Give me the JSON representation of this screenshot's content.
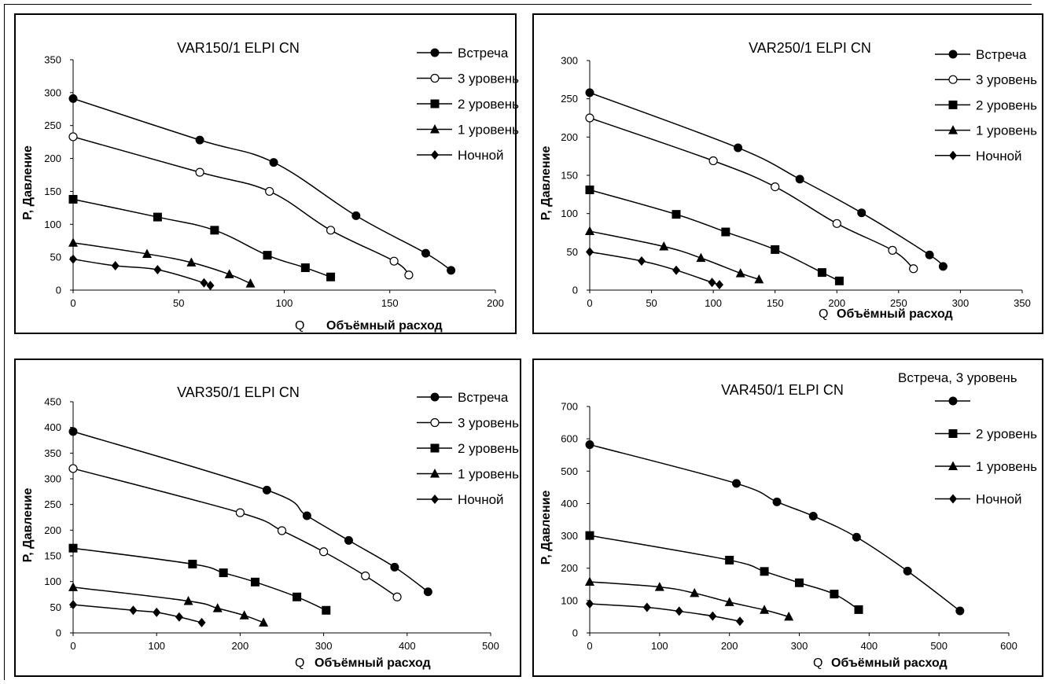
{
  "chart_data": [
    {
      "type": "line",
      "title": "VAR150/1 ELPI CN",
      "ylabel": "P, Давление",
      "xlabel_symbol": "Q",
      "xlabel": "Объёмный расход",
      "xlim": [
        0,
        200
      ],
      "ylim": [
        0,
        350
      ],
      "xticks": [
        0,
        50,
        100,
        150,
        200
      ],
      "yticks": [
        0,
        50,
        100,
        150,
        200,
        250,
        300,
        350
      ],
      "grid": false,
      "legend": "top-right",
      "series": [
        {
          "name": "Встреча",
          "marker": "circle",
          "points": [
            [
              0,
              291
            ],
            [
              60,
              228
            ],
            [
              95,
              194
            ],
            [
              134,
              113
            ],
            [
              167,
              56
            ],
            [
              179,
              30
            ]
          ]
        },
        {
          "name": "3 уровень",
          "marker": "open-circle",
          "points": [
            [
              0,
              233
            ],
            [
              60,
              179
            ],
            [
              93,
              150
            ],
            [
              122,
              91
            ],
            [
              152,
              44
            ],
            [
              159,
              23
            ]
          ]
        },
        {
          "name": "2 уровень",
          "marker": "square",
          "points": [
            [
              0,
              138
            ],
            [
              40,
              111
            ],
            [
              67,
              91
            ],
            [
              92,
              53
            ],
            [
              110,
              34
            ],
            [
              122,
              20
            ]
          ]
        },
        {
          "name": "1 уровень",
          "marker": "triangle",
          "points": [
            [
              0,
              72
            ],
            [
              35,
              55
            ],
            [
              56,
              42
            ],
            [
              74,
              24
            ],
            [
              84,
              10
            ]
          ]
        },
        {
          "name": "Ночной",
          "marker": "diamond",
          "points": [
            [
              0,
              47
            ],
            [
              20,
              37
            ],
            [
              40,
              31
            ],
            [
              62,
              11
            ],
            [
              65,
              7
            ]
          ]
        }
      ]
    },
    {
      "type": "line",
      "title": "VAR250/1 ELPI CN",
      "ylabel": "P, Давление",
      "xlabel_symbol": "Q",
      "xlabel": "Объёмный расход",
      "xlim": [
        0,
        350
      ],
      "ylim": [
        0,
        300
      ],
      "xticks": [
        0,
        50,
        100,
        150,
        200,
        250,
        300,
        350
      ],
      "yticks": [
        0,
        50,
        100,
        150,
        200,
        250,
        300
      ],
      "grid": false,
      "legend": "top-right",
      "series": [
        {
          "name": "Встреча",
          "marker": "circle",
          "points": [
            [
              0,
              258
            ],
            [
              120,
              186
            ],
            [
              170,
              145
            ],
            [
              220,
              101
            ],
            [
              275,
              46
            ],
            [
              286,
              31
            ]
          ]
        },
        {
          "name": "3 уровень",
          "marker": "open-circle",
          "points": [
            [
              0,
              225
            ],
            [
              100,
              169
            ],
            [
              150,
              135
            ],
            [
              200,
              87
            ],
            [
              245,
              52
            ],
            [
              262,
              28
            ]
          ]
        },
        {
          "name": "2 уровень",
          "marker": "square",
          "points": [
            [
              0,
              131
            ],
            [
              70,
              99
            ],
            [
              110,
              76
            ],
            [
              150,
              53
            ],
            [
              188,
              23
            ],
            [
              202,
              12
            ]
          ]
        },
        {
          "name": "1 уровень",
          "marker": "triangle",
          "points": [
            [
              0,
              77
            ],
            [
              60,
              57
            ],
            [
              90,
              42
            ],
            [
              122,
              22
            ],
            [
              137,
              14
            ]
          ]
        },
        {
          "name": "Ночной",
          "marker": "diamond",
          "points": [
            [
              0,
              50
            ],
            [
              42,
              38
            ],
            [
              70,
              26
            ],
            [
              99,
              10
            ],
            [
              105,
              7
            ]
          ]
        }
      ]
    },
    {
      "type": "line",
      "title": "VAR350/1 ELPI CN",
      "ylabel": "P, Давление",
      "xlabel_symbol": "Q",
      "xlabel": "Объёмный расход",
      "xlim": [
        0,
        500
      ],
      "ylim": [
        0,
        450
      ],
      "xticks": [
        0,
        100,
        200,
        300,
        400,
        500
      ],
      "yticks": [
        0,
        50,
        100,
        150,
        200,
        250,
        300,
        350,
        400,
        450
      ],
      "grid": false,
      "legend": "top-right",
      "series": [
        {
          "name": "Встреча",
          "marker": "circle",
          "points": [
            [
              0,
              392
            ],
            [
              232,
              278
            ],
            [
              280,
              228
            ],
            [
              330,
              180
            ],
            [
              385,
              128
            ],
            [
              425,
              80
            ]
          ]
        },
        {
          "name": "3 уровень",
          "marker": "open-circle",
          "points": [
            [
              0,
              320
            ],
            [
              200,
              234
            ],
            [
              250,
              199
            ],
            [
              300,
              158
            ],
            [
              350,
              111
            ],
            [
              388,
              70
            ]
          ]
        },
        {
          "name": "2 уровень",
          "marker": "square",
          "points": [
            [
              0,
              165
            ],
            [
              143,
              134
            ],
            [
              180,
              117
            ],
            [
              218,
              99
            ],
            [
              268,
              70
            ],
            [
              303,
              44
            ]
          ]
        },
        {
          "name": "1 уровень",
          "marker": "triangle",
          "points": [
            [
              0,
              89
            ],
            [
              138,
              62
            ],
            [
              173,
              48
            ],
            [
              205,
              34
            ],
            [
              228,
              20
            ]
          ]
        },
        {
          "name": "Ночной",
          "marker": "diamond",
          "points": [
            [
              0,
              55
            ],
            [
              72,
              44
            ],
            [
              100,
              40
            ],
            [
              127,
              31
            ],
            [
              154,
              20
            ]
          ]
        }
      ]
    },
    {
      "type": "line",
      "title": "VAR450/1 ELPI CN",
      "ylabel": "P, Давление",
      "xlabel_symbol": "Q",
      "xlabel": "Объёмный расход",
      "xlim": [
        0,
        600
      ],
      "ylim": [
        0,
        700
      ],
      "xticks": [
        0,
        100,
        200,
        300,
        400,
        500,
        600
      ],
      "yticks": [
        0,
        100,
        200,
        300,
        400,
        500,
        600,
        700
      ],
      "grid": false,
      "legend": "top-right",
      "series": [
        {
          "name": "Встреча, 3 уровень",
          "marker": "circle",
          "points": [
            [
              0,
              582
            ],
            [
              210,
              462
            ],
            [
              268,
              405
            ],
            [
              320,
              361
            ],
            [
              382,
              296
            ],
            [
              455,
              191
            ],
            [
              530,
              68
            ]
          ]
        },
        {
          "name": "2 уровень",
          "marker": "square",
          "points": [
            [
              0,
              301
            ],
            [
              200,
              225
            ],
            [
              250,
              190
            ],
            [
              300,
              155
            ],
            [
              350,
              120
            ],
            [
              385,
              72
            ]
          ]
        },
        {
          "name": "1 уровень",
          "marker": "triangle",
          "points": [
            [
              0,
              158
            ],
            [
              100,
              142
            ],
            [
              150,
              123
            ],
            [
              200,
              95
            ],
            [
              250,
              71
            ],
            [
              285,
              50
            ]
          ]
        },
        {
          "name": "Ночной",
          "marker": "diamond",
          "points": [
            [
              0,
              90
            ],
            [
              82,
              79
            ],
            [
              128,
              67
            ],
            [
              176,
              52
            ],
            [
              215,
              36
            ]
          ]
        }
      ]
    }
  ]
}
